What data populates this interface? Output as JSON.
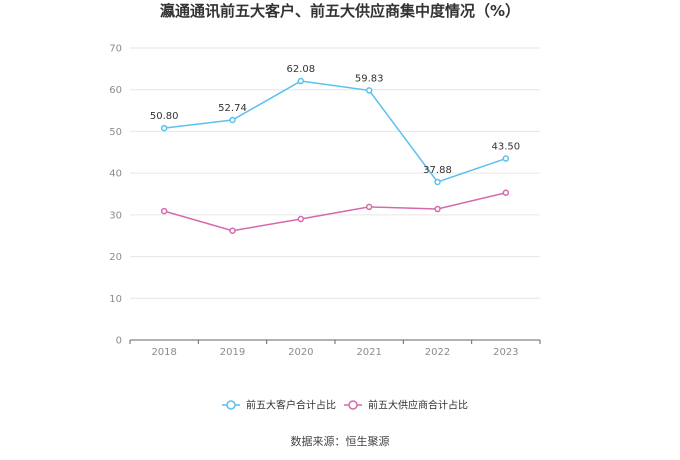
{
  "chart_data": {
    "type": "line",
    "title": "瀛通通讯前五大客户、前五大供应商集中度情况（%）",
    "categories": [
      "2018",
      "2019",
      "2020",
      "2021",
      "2022",
      "2023"
    ],
    "ylim": [
      0,
      70
    ],
    "yticks": [
      0,
      10,
      20,
      30,
      40,
      50,
      60,
      70
    ],
    "grid": true,
    "legend_position": "bottom",
    "series": [
      {
        "name": "前五大客户合计占比",
        "values": [
          50.8,
          52.74,
          62.08,
          59.83,
          37.88,
          43.5
        ],
        "labels": [
          "50.80",
          "52.74",
          "62.08",
          "59.83",
          "37.88",
          "43.50"
        ],
        "color": "#5bc0f0"
      },
      {
        "name": "前五大供应商合计占比",
        "values": [
          30.9,
          26.2,
          29.0,
          31.9,
          31.4,
          35.3
        ],
        "color": "#d46aad"
      }
    ],
    "source": "数据来源：恒生聚源"
  }
}
